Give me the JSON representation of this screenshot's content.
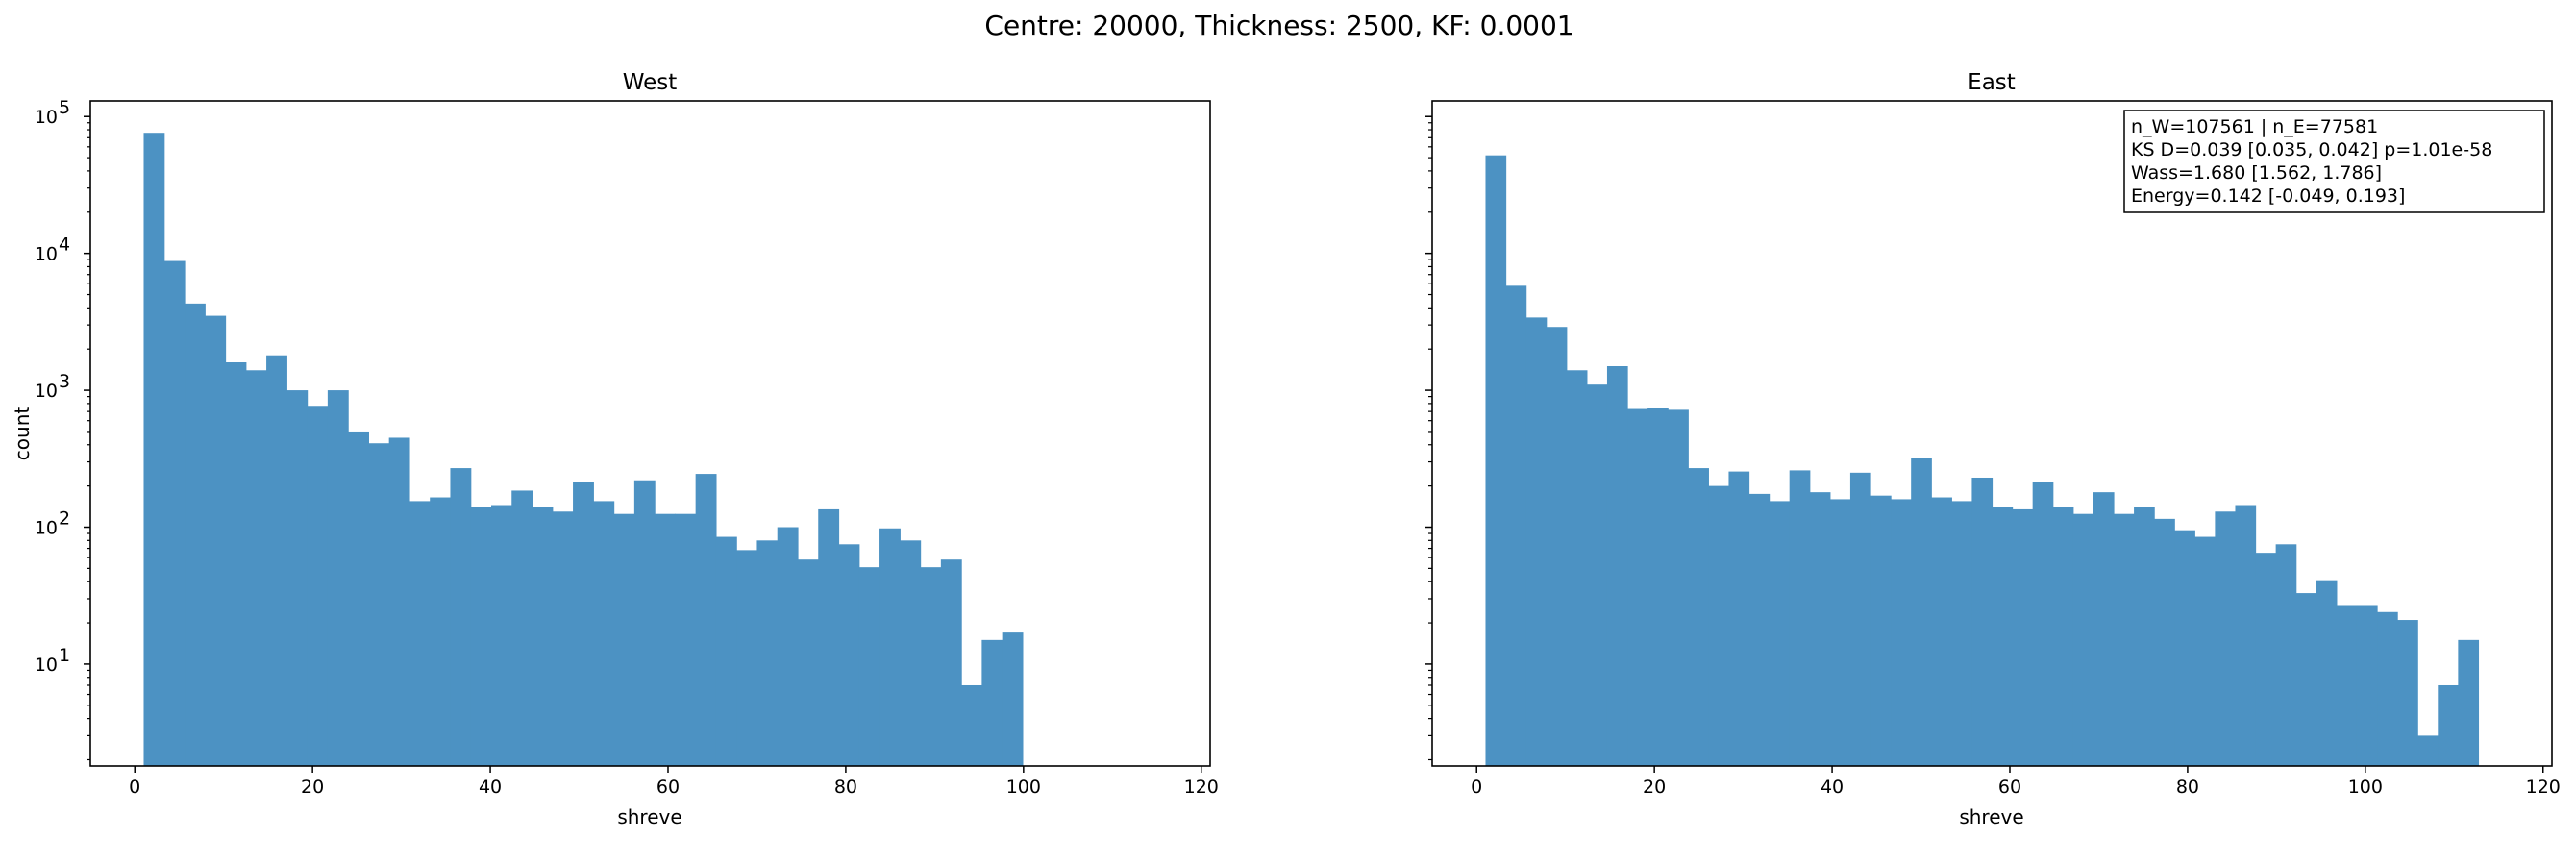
{
  "figure": {
    "suptitle": "Centre: 20000, Thickness: 2500, KF: 0.0001"
  },
  "chart_data": [
    {
      "type": "histogram",
      "title": "West",
      "xlabel": "shreve",
      "ylabel": "count",
      "yscale": "log",
      "xlim": [
        -5,
        121
      ],
      "ylim": [
        1.8,
        130000
      ],
      "xticks": [
        0,
        20,
        40,
        60,
        80,
        100,
        120
      ],
      "yticks": [
        {
          "value": 10,
          "base": "10",
          "exp": "1"
        },
        {
          "value": 100,
          "base": "10",
          "exp": "2"
        },
        {
          "value": 1000,
          "base": "10",
          "exp": "3"
        },
        {
          "value": 10000,
          "base": "10",
          "exp": "4"
        },
        {
          "value": 100000,
          "base": "10",
          "exp": "5"
        }
      ],
      "bin_start": 1,
      "bin_width": 2.3,
      "color": "#4c92c3",
      "counts": [
        76000,
        8800,
        4300,
        3500,
        1600,
        1400,
        1800,
        1000,
        770,
        1000,
        500,
        410,
        450,
        155,
        165,
        270,
        140,
        145,
        185,
        140,
        130,
        215,
        155,
        125,
        220,
        125,
        125,
        245,
        85,
        68,
        80,
        100,
        58,
        135,
        75,
        51,
        98,
        80,
        51,
        58,
        7,
        15,
        17
      ]
    },
    {
      "type": "histogram",
      "title": "East",
      "xlabel": "shreve",
      "ylabel": "",
      "yscale": "log",
      "xlim": [
        -5,
        121
      ],
      "ylim": [
        1.8,
        130000
      ],
      "xticks": [
        0,
        20,
        40,
        60,
        80,
        100,
        120
      ],
      "bin_start": 1,
      "bin_width": 2.28,
      "color": "#4c92c3",
      "counts": [
        52000,
        5800,
        3400,
        2900,
        1400,
        1100,
        1500,
        730,
        740,
        720,
        270,
        200,
        255,
        175,
        155,
        260,
        180,
        160,
        250,
        170,
        160,
        320,
        165,
        155,
        230,
        140,
        135,
        215,
        140,
        125,
        180,
        125,
        140,
        115,
        95,
        85,
        130,
        145,
        65,
        75,
        33,
        41,
        27,
        27,
        24,
        21,
        3,
        7,
        15
      ],
      "stats_box": {
        "lines": [
          "n_W=107561 | n_E=77581",
          "KS D=0.039 [0.035, 0.042]  p=1.01e-58",
          "Wass=1.680 [1.562, 1.786]",
          "Energy=0.142 [-0.049, 0.193]"
        ],
        "placement": "top-right"
      }
    }
  ]
}
